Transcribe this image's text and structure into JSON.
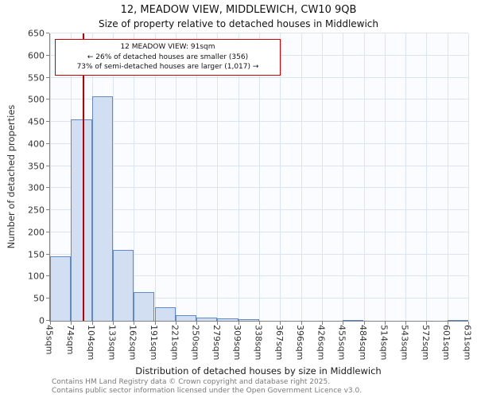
{
  "title": "12, MEADOW VIEW, MIDDLEWICH, CW10 9QB",
  "subtitle": "Size of property relative to detached houses in Middlewich",
  "annotation": {
    "line1": "12 MEADOW VIEW: 91sqm",
    "line2": "← 26% of detached houses are smaller (356)",
    "line3": "73% of semi-detached houses are larger (1,017) →"
  },
  "footer": {
    "line1": "Contains HM Land Registry data © Crown copyright and database right 2025.",
    "line2": "Contains public sector information licensed under the Open Government Licence v3.0."
  },
  "chart_data": {
    "type": "bar",
    "title": "12, MEADOW VIEW, MIDDLEWICH, CW10 9QB",
    "subtitle": "Size of property relative to detached houses in Middlewich",
    "xlabel": "Distribution of detached houses by size in Middlewich",
    "ylabel": "Number of detached properties",
    "ylim": [
      0,
      650
    ],
    "ytick_step": 50,
    "y_tick_labels": [
      "0",
      "50",
      "100",
      "150",
      "200",
      "250",
      "300",
      "350",
      "400",
      "450",
      "500",
      "550",
      "600",
      "650"
    ],
    "bin_edges_sqm": [
      45,
      74,
      104,
      133,
      162,
      191,
      221,
      250,
      279,
      309,
      338,
      367,
      396,
      426,
      455,
      484,
      514,
      543,
      572,
      601,
      631
    ],
    "x_tick_labels": [
      "45sqm",
      "74sqm",
      "104sqm",
      "133sqm",
      "162sqm",
      "191sqm",
      "221sqm",
      "250sqm",
      "279sqm",
      "309sqm",
      "338sqm",
      "367sqm",
      "396sqm",
      "426sqm",
      "455sqm",
      "484sqm",
      "514sqm",
      "543sqm",
      "572sqm",
      "601sqm",
      "631sqm"
    ],
    "values": [
      145,
      455,
      508,
      160,
      65,
      30,
      13,
      8,
      5,
      3,
      0,
      0,
      0,
      0,
      2,
      0,
      0,
      0,
      0,
      2
    ],
    "marker": {
      "value_sqm": 91,
      "color": "#bb0000"
    },
    "grid": true,
    "colors": {
      "bar_fill": "#d2dff2",
      "bar_border": "#6189c4",
      "grid": "#dce3f1",
      "marker_line": "#bb0000",
      "annotation_border": "#cc0000"
    }
  }
}
